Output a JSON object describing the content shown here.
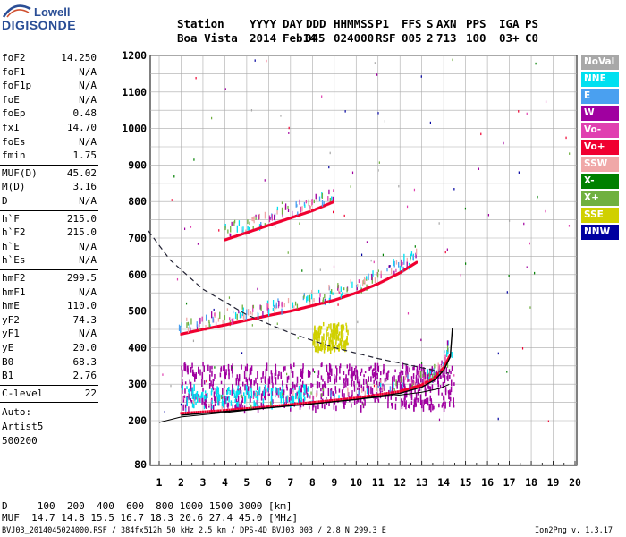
{
  "logo": {
    "line1": "Lowell",
    "line2": "DIGISONDE"
  },
  "header": {
    "labels": [
      "Station",
      "YYYY",
      "DAY",
      "DDD",
      "HHMMSS",
      "P1",
      "FFS",
      "S",
      "AXN",
      "PPS",
      "IGA",
      "PS"
    ],
    "values": [
      "Boa Vista",
      "2014",
      "Feb14",
      "045",
      "024000",
      "RSF",
      "005",
      "2",
      "713",
      "100",
      "03+",
      "C0"
    ]
  },
  "params": {
    "group1": [
      {
        "name": "foF2",
        "value": "14.250"
      },
      {
        "name": "foF1",
        "value": "N/A"
      },
      {
        "name": "foF1p",
        "value": "N/A"
      },
      {
        "name": "foE",
        "value": "N/A"
      },
      {
        "name": "foEp",
        "value": "0.48"
      },
      {
        "name": "fxI",
        "value": "14.70"
      },
      {
        "name": "foEs",
        "value": "N/A"
      },
      {
        "name": "fmin",
        "value": "1.75"
      }
    ],
    "group2": [
      {
        "name": "MUF(D)",
        "value": "45.02"
      },
      {
        "name": "M(D)",
        "value": "3.16"
      },
      {
        "name": "D",
        "value": "N/A"
      }
    ],
    "group3": [
      {
        "name": "h`F",
        "value": "215.0"
      },
      {
        "name": "h`F2",
        "value": "215.0"
      },
      {
        "name": "h`E",
        "value": "N/A"
      },
      {
        "name": "h`Es",
        "value": "N/A"
      }
    ],
    "group4": [
      {
        "name": "hmF2",
        "value": "299.5"
      },
      {
        "name": "hmF1",
        "value": "N/A"
      },
      {
        "name": "hmE",
        "value": "110.0"
      },
      {
        "name": "yF2",
        "value": "74.3"
      },
      {
        "name": "yF1",
        "value": "N/A"
      },
      {
        "name": "yE",
        "value": "20.0"
      },
      {
        "name": "B0",
        "value": "68.3"
      },
      {
        "name": "B1",
        "value": "2.76"
      }
    ],
    "clevel": {
      "name": "C-level",
      "value": "22"
    },
    "auto": [
      "Auto:",
      "Artist5",
      "500200"
    ]
  },
  "legend": [
    {
      "label": "NoVal",
      "color": "#a8a8a8"
    },
    {
      "label": "NNE",
      "color": "#00e0f0"
    },
    {
      "label": "E",
      "color": "#4aa0f0"
    },
    {
      "label": "W",
      "color": "#a000a0"
    },
    {
      "label": "Vo-",
      "color": "#e040b0"
    },
    {
      "label": "Vo+",
      "color": "#f00030"
    },
    {
      "label": "SSW",
      "color": "#f0a8a8"
    },
    {
      "label": "X-",
      "color": "#008000"
    },
    {
      "label": "X+",
      "color": "#70b040"
    },
    {
      "label": "SSE",
      "color": "#d0d000"
    },
    {
      "label": "NNW",
      "color": "#0000a0"
    }
  ],
  "bottom": {
    "d_row": "D     100  200  400  600  800 1000 1500 3000 [km]",
    "muf_row": "MUF  14.7 14.8 15.5 16.7 18.3 20.6 27.4 45.0 [MHz]"
  },
  "footer": {
    "left": "BVJ03_2014045024000.RSF / 384fx512h 50 kHz 2.5 km / DPS-4D BVJ03 003 / 2.8 N 299.3 E",
    "right": "Ion2Png v. 1.3.17"
  },
  "chart_data": {
    "type": "scatter",
    "title": "",
    "xlabel": "",
    "ylabel": "",
    "xlim": [
      0.5,
      20.2
    ],
    "ylim": [
      80,
      1220
    ],
    "xticks": [
      1,
      2,
      3,
      4,
      5,
      6,
      7,
      8,
      9,
      10,
      11,
      12,
      13,
      14,
      15,
      16,
      17,
      18,
      19,
      20
    ],
    "yticks": [
      80,
      200,
      300,
      400,
      500,
      600,
      700,
      800,
      900,
      1000,
      1100,
      1200
    ],
    "grid": true,
    "legend_position": "right",
    "series": [
      {
        "name": "Vo+",
        "kind": "trace",
        "color": "#f00030",
        "x": [
          2.0,
          4.0,
          6.0,
          8.0,
          10.0,
          12.0,
          13.0,
          13.6,
          14.0,
          14.3
        ],
        "y": [
          220,
          228,
          238,
          250,
          262,
          280,
          298,
          318,
          345,
          380
        ]
      },
      {
        "name": "Vo+",
        "kind": "trace",
        "color": "#f00030",
        "x": [
          2.0,
          3.0,
          4.0,
          5.0,
          6.0,
          7.0,
          8.0,
          9.0,
          10.0,
          11.0,
          12.0,
          12.8
        ],
        "y": [
          437,
          450,
          462,
          475,
          488,
          500,
          515,
          530,
          550,
          575,
          605,
          635
        ]
      },
      {
        "name": "Vo+",
        "kind": "trace",
        "color": "#f00030",
        "x": [
          4.0,
          5.0,
          6.0,
          7.0,
          8.0,
          9.0
        ],
        "y": [
          695,
          715,
          735,
          755,
          775,
          800
        ]
      },
      {
        "name": "W",
        "kind": "cloud",
        "color": "#a000a0",
        "xrange": [
          2.0,
          14.5
        ],
        "yrange": [
          240,
          360
        ]
      },
      {
        "name": "SSE",
        "kind": "cloud",
        "color": "#d0d000",
        "xrange": [
          8.0,
          9.6
        ],
        "yrange": [
          400,
          470
        ]
      },
      {
        "name": "NNE",
        "kind": "cloud",
        "color": "#00e0f0",
        "xrange": [
          2.0,
          8.0
        ],
        "yrange": [
          250,
          300
        ]
      }
    ],
    "profile": {
      "kind": "model",
      "x": [
        1.0,
        2.0,
        4.0,
        6.0,
        8.0,
        10.0,
        12.0,
        13.0,
        13.8,
        14.25
      ],
      "y": [
        195,
        210,
        222,
        235,
        246,
        258,
        270,
        278,
        288,
        299.5
      ]
    },
    "dashed_curve": {
      "x": [
        0.5,
        1.5,
        3.0,
        5.0,
        7.0,
        9.0,
        11.0,
        13.0,
        14.25
      ],
      "y": [
        720,
        640,
        560,
        490,
        440,
        400,
        370,
        345,
        330
      ]
    },
    "trace_line": {
      "x": [
        2.0,
        4.0,
        6.0,
        8.0,
        10.0,
        12.0,
        13.0,
        13.6,
        14.0,
        14.3,
        14.4
      ],
      "y": [
        215,
        225,
        235,
        246,
        258,
        275,
        292,
        312,
        338,
        375,
        455
      ]
    }
  }
}
